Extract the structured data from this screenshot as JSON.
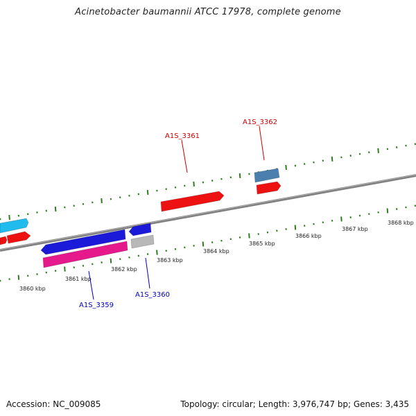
{
  "title": "Acinetobacter baumannii ATCC 17978, complete genome",
  "footer": {
    "accession": "Accession: NC_009085",
    "summary": "Topology: circular; Length: 3,976,747 bp; Genes: 3,435"
  },
  "colors": {
    "backbone": "#808080",
    "ticks": "#2e7d1e",
    "label_forward": "#cc0000",
    "label_reverse": "#0000bb"
  },
  "ruler": {
    "labels": [
      "3860 kbp",
      "3861 kbp",
      "3862 kbp",
      "3863 kbp",
      "3864 kbp",
      "3865 kbp",
      "3866 kbp",
      "3867 kbp",
      "3868 kbp"
    ]
  },
  "gene_labels": [
    {
      "id": "A1S_3361",
      "text": "A1S_3361"
    },
    {
      "id": "A1S_3362",
      "text": "A1S_3362"
    },
    {
      "id": "A1S_3359",
      "text": "A1S_3359"
    },
    {
      "id": "A1S_3360",
      "text": "A1S_3360"
    }
  ],
  "features": [
    {
      "name": "feature-cyan",
      "color": "#22bbee"
    },
    {
      "name": "feature-red-left",
      "color": "#ee1111"
    },
    {
      "name": "feature-red-left-small",
      "color": "#ee1111"
    },
    {
      "name": "feature-blue-long",
      "color": "#1a1ad8"
    },
    {
      "name": "feature-magenta",
      "color": "#e6198c"
    },
    {
      "name": "feature-blue-short",
      "color": "#1a1ad8"
    },
    {
      "name": "feature-gray",
      "color": "#b8b8b8"
    },
    {
      "name": "feature-a1s-3361",
      "color": "#ee1111"
    },
    {
      "name": "feature-a1s-3362-steelblue",
      "color": "#4a7fae"
    },
    {
      "name": "feature-a1s-3362-red",
      "color": "#ee1111"
    }
  ]
}
